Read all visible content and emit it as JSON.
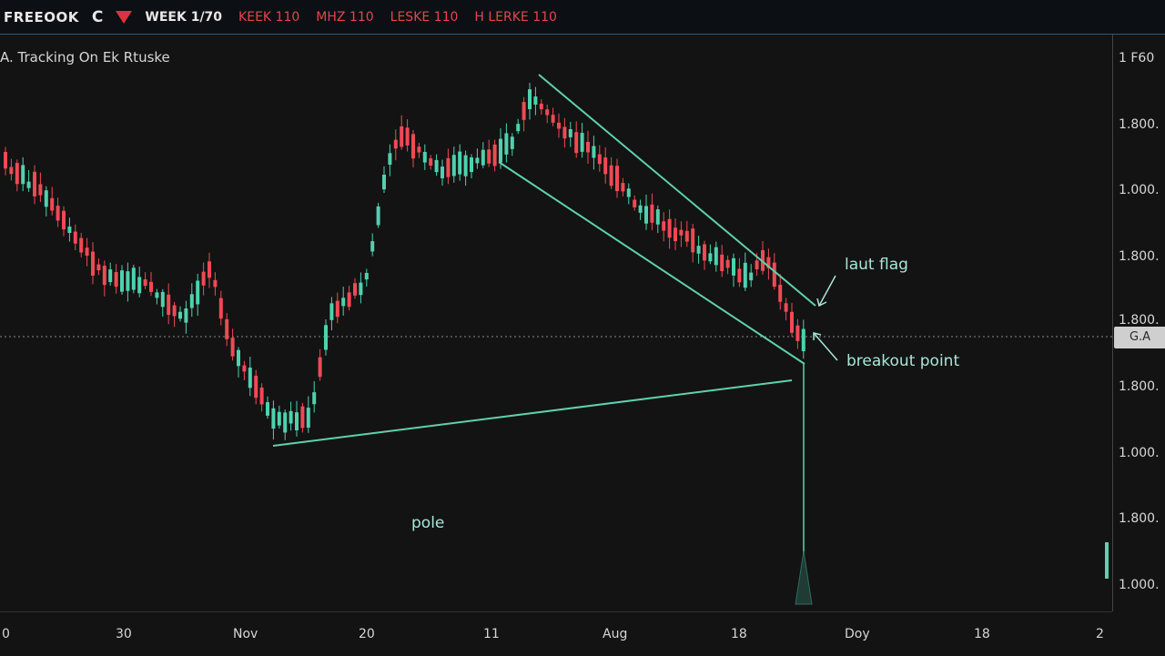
{
  "topbar": {
    "symbol": "FREEOOK",
    "icon_char": "C",
    "timeframe": "WEEK 1/70",
    "ohlc": [
      "KEEK 110",
      "MHZ 110",
      "LESKE 110",
      "H LERKE 110"
    ]
  },
  "legend": {
    "text": "A. Tracking On  Ek  Rtuske"
  },
  "annotations": {
    "flag_label": "laut flag",
    "breakout_label": "breakout point",
    "pole_label": "pole"
  },
  "price_axis": {
    "labels": [
      "1 F60",
      "1.800.",
      "1.000.",
      "1.800.",
      "1.800.",
      "1.800.",
      "1.000.",
      "1.800.",
      "1.000."
    ],
    "current_tag": "G.A"
  },
  "time_axis": {
    "labels": [
      "0",
      "30",
      "Nov",
      "20",
      "11",
      "Aug",
      "18",
      "Doy",
      "18",
      "2"
    ]
  },
  "colors": {
    "bull": "#4fd1ae",
    "bear": "#ef4a55",
    "trendline": "#5fd1ad"
  }
}
